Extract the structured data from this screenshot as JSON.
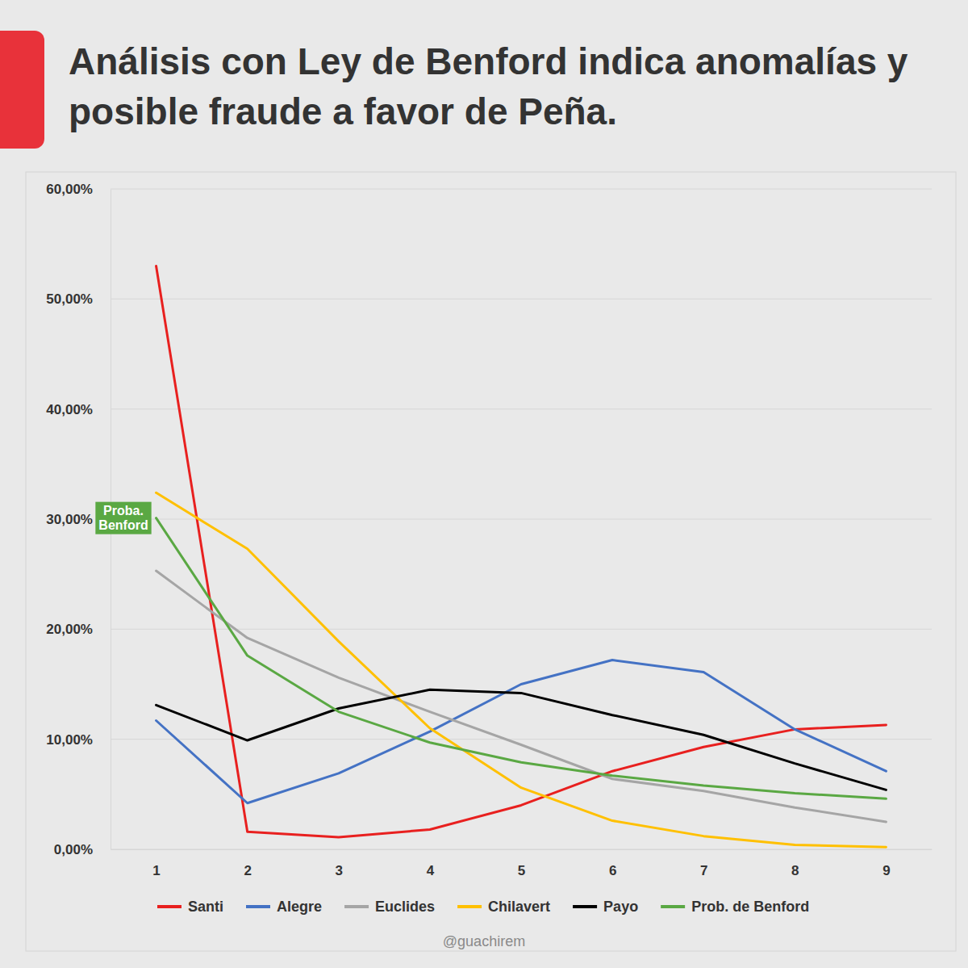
{
  "chart_data": {
    "type": "line",
    "title": "Análisis con Ley de Benford indica anomalías y posible fraude a favor de Peña.",
    "categories": [
      "1",
      "2",
      "3",
      "4",
      "5",
      "6",
      "7",
      "8",
      "9"
    ],
    "series": [
      {
        "name": "Santi",
        "color": "#e8201f",
        "values": [
          53.0,
          1.6,
          1.1,
          1.8,
          4.0,
          7.1,
          9.3,
          10.9,
          11.3
        ]
      },
      {
        "name": "Alegre",
        "color": "#4472c4",
        "values": [
          11.7,
          4.2,
          6.9,
          10.7,
          15.0,
          17.2,
          16.1,
          10.9,
          7.1
        ]
      },
      {
        "name": "Euclides",
        "color": "#a5a5a5",
        "values": [
          25.3,
          19.2,
          15.6,
          12.5,
          9.5,
          6.4,
          5.3,
          3.8,
          2.5
        ]
      },
      {
        "name": "Chilavert",
        "color": "#ffc000",
        "values": [
          32.4,
          27.3,
          18.9,
          11.0,
          5.6,
          2.6,
          1.2,
          0.4,
          0.2
        ]
      },
      {
        "name": "Payo",
        "color": "#000000",
        "values": [
          13.1,
          9.9,
          12.8,
          14.5,
          14.2,
          12.2,
          10.4,
          7.8,
          5.4
        ]
      },
      {
        "name": "Prob. de Benford",
        "color": "#5aa843",
        "values": [
          30.1,
          17.6,
          12.5,
          9.7,
          7.9,
          6.7,
          5.8,
          5.1,
          4.6
        ]
      }
    ],
    "ylim": [
      0,
      60
    ],
    "yticks": [
      {
        "value": 0,
        "label": "0,00%"
      },
      {
        "value": 10,
        "label": "10,00%"
      },
      {
        "value": 20,
        "label": "20,00%"
      },
      {
        "value": 30,
        "label": "30,00%"
      },
      {
        "value": 40,
        "label": "40,00%"
      },
      {
        "value": 50,
        "label": "50,00%"
      },
      {
        "value": 60,
        "label": "60,00%"
      }
    ],
    "grid": true,
    "legend": "bottom",
    "annotations": [
      "Proba.",
      "Benford"
    ],
    "source": "@guachirem"
  }
}
